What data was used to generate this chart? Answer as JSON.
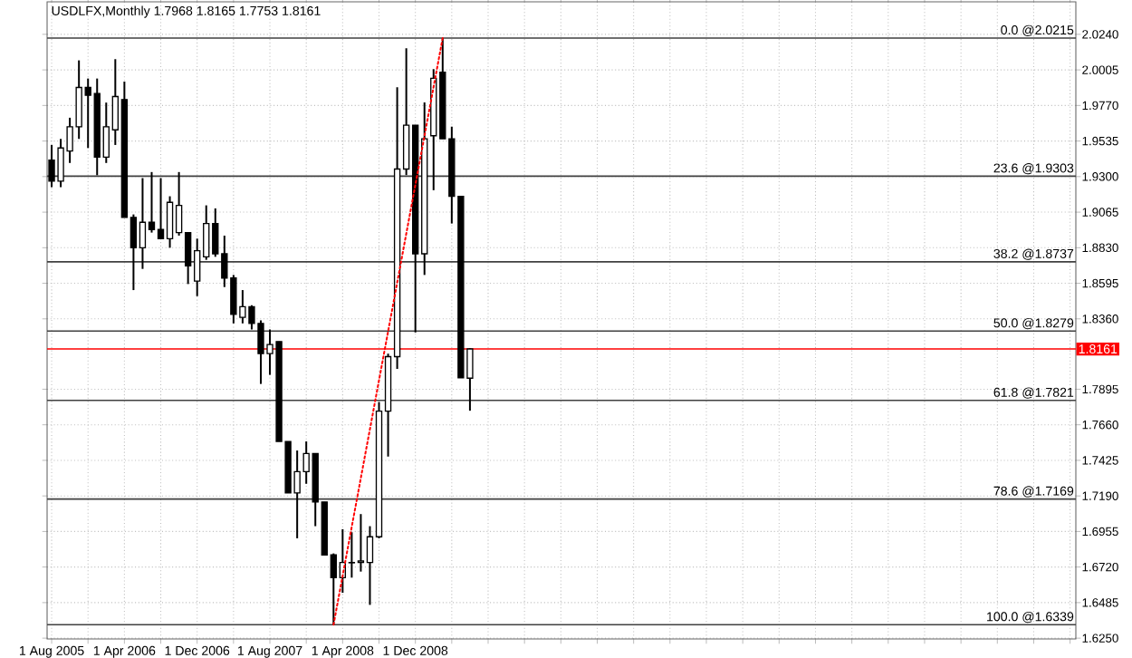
{
  "chart_data": {
    "type": "candlestick",
    "title": "USDLFX,Monthly  1.7968 1.8165 1.7753 1.8161",
    "x": [
      "2005-08",
      "2005-09",
      "2005-10",
      "2005-11",
      "2005-12",
      "2006-01",
      "2006-02",
      "2006-03",
      "2006-04",
      "2006-05",
      "2006-06",
      "2006-07",
      "2006-08",
      "2006-09",
      "2006-10",
      "2006-11",
      "2006-12",
      "2007-01",
      "2007-02",
      "2007-03",
      "2007-04",
      "2007-05",
      "2007-06",
      "2007-07",
      "2007-08",
      "2007-09",
      "2007-10",
      "2007-11",
      "2007-12",
      "2008-01",
      "2008-02",
      "2008-03",
      "2008-04",
      "2008-05",
      "2008-06",
      "2008-07",
      "2008-08",
      "2008-09",
      "2008-10",
      "2008-11",
      "2008-12",
      "2009-01",
      "2009-02",
      "2009-03",
      "2009-04",
      "2009-05",
      "2009-06"
    ],
    "ohlc": [
      [
        1.9409,
        1.9509,
        1.923,
        1.927
      ],
      [
        1.927,
        1.9549,
        1.923,
        1.9489
      ],
      [
        1.9469,
        1.9689,
        1.939,
        1.9629
      ],
      [
        1.9629,
        2.0068,
        1.9549,
        1.9889
      ],
      [
        1.9889,
        1.9948,
        1.9489,
        1.9837
      ],
      [
        1.9849,
        1.9948,
        1.9309,
        1.9429
      ],
      [
        1.9429,
        1.9789,
        1.939,
        1.9629
      ],
      [
        1.9609,
        2.0076,
        1.9509,
        1.9829
      ],
      [
        1.9809,
        1.9928,
        1.903,
        1.903
      ],
      [
        1.903,
        1.905,
        1.855,
        1.883
      ],
      [
        1.883,
        1.929,
        1.869,
        1.8998
      ],
      [
        1.8998,
        1.933,
        1.893,
        1.895
      ],
      [
        1.895,
        1.929,
        1.889,
        1.889
      ],
      [
        1.889,
        1.917,
        1.883,
        1.913
      ],
      [
        1.893,
        1.933,
        1.891,
        1.911
      ],
      [
        1.893,
        1.893,
        1.859,
        1.871
      ],
      [
        1.861,
        1.889,
        1.851,
        1.881
      ],
      [
        1.877,
        1.911,
        1.875,
        1.899
      ],
      [
        1.899,
        1.909,
        1.877,
        1.879
      ],
      [
        1.879,
        1.891,
        1.857,
        1.863
      ],
      [
        1.863,
        1.865,
        1.833,
        1.839
      ],
      [
        1.837,
        1.855,
        1.833,
        1.844
      ],
      [
        1.844,
        1.845,
        1.829,
        1.833
      ],
      [
        1.833,
        1.835,
        1.793,
        1.813
      ],
      [
        1.813,
        1.829,
        1.799,
        1.819
      ],
      [
        1.821,
        1.821,
        1.755,
        1.755
      ],
      [
        1.755,
        1.755,
        1.721,
        1.721
      ],
      [
        1.721,
        1.749,
        1.691,
        1.735
      ],
      [
        1.735,
        1.755,
        1.727,
        1.747
      ],
      [
        1.747,
        1.747,
        1.699,
        1.715
      ],
      [
        1.715,
        1.715,
        1.68,
        1.68
      ],
      [
        1.68,
        1.681,
        1.6339,
        1.665
      ],
      [
        1.665,
        1.697,
        1.655,
        1.675
      ],
      [
        1.675,
        1.695,
        1.665,
        1.6748
      ],
      [
        1.675,
        1.707,
        1.669,
        1.676
      ],
      [
        1.675,
        1.699,
        1.647,
        1.692
      ],
      [
        1.692,
        1.781,
        1.691,
        1.775
      ],
      [
        1.775,
        1.813,
        1.745,
        1.811
      ],
      [
        1.811,
        1.989,
        1.803,
        1.935
      ],
      [
        1.935,
        2.0148,
        1.931,
        1.964
      ],
      [
        1.964,
        1.964,
        1.827,
        1.879
      ],
      [
        1.879,
        1.979,
        1.865,
        1.955
      ],
      [
        1.957,
        2.001,
        1.921,
        1.995
      ],
      [
        1.999,
        2.0215,
        1.955,
        1.955
      ],
      [
        1.955,
        1.963,
        1.899,
        1.917
      ],
      [
        1.917,
        1.917,
        1.797,
        1.797
      ],
      [
        1.7968,
        1.8165,
        1.7753,
        1.8161
      ]
    ],
    "series": [
      {
        "type": "line",
        "x": [
          "2008-03",
          "2009-03"
        ],
        "values": [
          1.6339,
          2.0215
        ],
        "color": "#ff0000",
        "line_style": "dotted"
      }
    ],
    "xlim": [
      "2005-07-16",
      "2014-12-20"
    ],
    "xticks": [
      {
        "value": "2005-08",
        "label": "1 Aug 2005"
      },
      {
        "value": "2005-12",
        "label": null
      },
      {
        "value": "2006-04",
        "label": "1 Apr 2006"
      },
      {
        "value": "2006-08",
        "label": null
      },
      {
        "value": "2006-12",
        "label": "1 Dec 2006"
      },
      {
        "value": "2007-04",
        "label": null
      },
      {
        "value": "2007-08",
        "label": "1 Aug 2007"
      },
      {
        "value": "2007-12",
        "label": null
      },
      {
        "value": "2008-04",
        "label": "1 Apr 2008"
      },
      {
        "value": "2008-08",
        "label": null
      },
      {
        "value": "2008-12",
        "label": "1 Dec 2008"
      },
      {
        "value": "2009-04",
        "label": null
      },
      {
        "value": "2009-08",
        "label": null
      },
      {
        "value": "2009-12",
        "label": null
      },
      {
        "value": "2010-04",
        "label": null
      },
      {
        "value": "2010-08",
        "label": null
      },
      {
        "value": "2010-12",
        "label": null
      },
      {
        "value": "2011-04",
        "label": null
      },
      {
        "value": "2011-08",
        "label": null
      },
      {
        "value": "2011-12",
        "label": null
      },
      {
        "value": "2012-04",
        "label": null
      },
      {
        "value": "2012-08",
        "label": null
      },
      {
        "value": "2012-12",
        "label": null
      },
      {
        "value": "2013-04",
        "label": null
      },
      {
        "value": "2013-08",
        "label": null
      },
      {
        "value": "2013-12",
        "label": null
      },
      {
        "value": "2014-04",
        "label": null
      },
      {
        "value": "2014-08",
        "label": null
      },
      {
        "value": "2014-12",
        "label": null
      }
    ],
    "ylim": [
      1.6245,
      2.0455
    ],
    "yticks": [
      {
        "value": 1.625,
        "label": "1.6250"
      },
      {
        "value": 1.6485,
        "label": "1.6485"
      },
      {
        "value": 1.672,
        "label": "1.6720"
      },
      {
        "value": 1.6955,
        "label": "1.6955"
      },
      {
        "value": 1.719,
        "label": "1.7190"
      },
      {
        "value": 1.7425,
        "label": "1.7425"
      },
      {
        "value": 1.766,
        "label": "1.7660"
      },
      {
        "value": 1.7895,
        "label": "1.7895"
      },
      {
        "value": 1.836,
        "label": "1.8360"
      },
      {
        "value": 1.8595,
        "label": "1.8595"
      },
      {
        "value": 1.883,
        "label": "1.8830"
      },
      {
        "value": 1.9065,
        "label": "1.9065"
      },
      {
        "value": 1.93,
        "label": "1.9300"
      },
      {
        "value": 1.9535,
        "label": "1.9535"
      },
      {
        "value": 1.977,
        "label": "1.9770"
      },
      {
        "value": 2.0005,
        "label": "2.0005"
      },
      {
        "value": 2.024,
        "label": "2.0240"
      }
    ],
    "ref_lines": [
      {
        "axis": "y",
        "value": 2.0215,
        "label": "0.0 @2.0215"
      },
      {
        "axis": "y",
        "value": 1.9303,
        "label": "23.6 @1.9303"
      },
      {
        "axis": "y",
        "value": 1.8737,
        "label": "38.2 @1.8737"
      },
      {
        "axis": "y",
        "value": 1.8279,
        "label": "50.0 @1.8279"
      },
      {
        "axis": "y",
        "value": 1.7821,
        "label": "61.8 @1.7821"
      },
      {
        "axis": "y",
        "value": 1.7169,
        "label": "78.6 @1.7169"
      },
      {
        "axis": "y",
        "value": 1.6339,
        "label": "100.0 @1.6339"
      },
      {
        "axis": "y",
        "value": 1.8161,
        "label": "1.8161",
        "color": "#ff0000"
      }
    ],
    "grid": true
  }
}
